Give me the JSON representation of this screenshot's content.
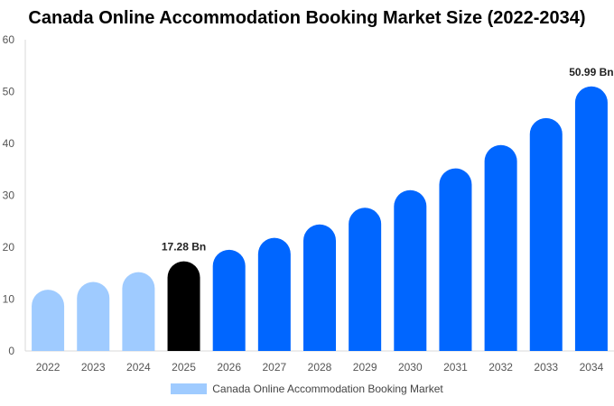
{
  "chart_data": {
    "type": "bar",
    "title": "Canada Online Accommodation Booking Market Size (2022-2034)",
    "xlabel": "",
    "ylabel": "",
    "categories": [
      "2022",
      "2023",
      "2024",
      "2025",
      "2026",
      "2027",
      "2028",
      "2029",
      "2030",
      "2031",
      "2032",
      "2033",
      "2034"
    ],
    "series": [
      {
        "name": "Canada Online Accommodation Booking Market",
        "values": [
          11.8,
          13.3,
          15.2,
          17.28,
          19.5,
          21.8,
          24.4,
          27.6,
          31.0,
          35.2,
          39.7,
          44.9,
          50.99
        ]
      }
    ],
    "ylim": [
      0,
      60
    ],
    "yticks": [
      0,
      10,
      20,
      30,
      40,
      50,
      60
    ],
    "grid": false,
    "legend_position": "bottom",
    "bar_colors": [
      "#9fcbff",
      "#9fcbff",
      "#9fcbff",
      "#000000",
      "#0066ff",
      "#0066ff",
      "#0066ff",
      "#0066ff",
      "#0066ff",
      "#0066ff",
      "#0066ff",
      "#0066ff",
      "#0066ff"
    ],
    "legend_color": "#9fcbff",
    "annotations": [
      {
        "category": "2025",
        "text": "17.28 Bn"
      },
      {
        "category": "2034",
        "text": "50.99 Bn"
      }
    ]
  }
}
